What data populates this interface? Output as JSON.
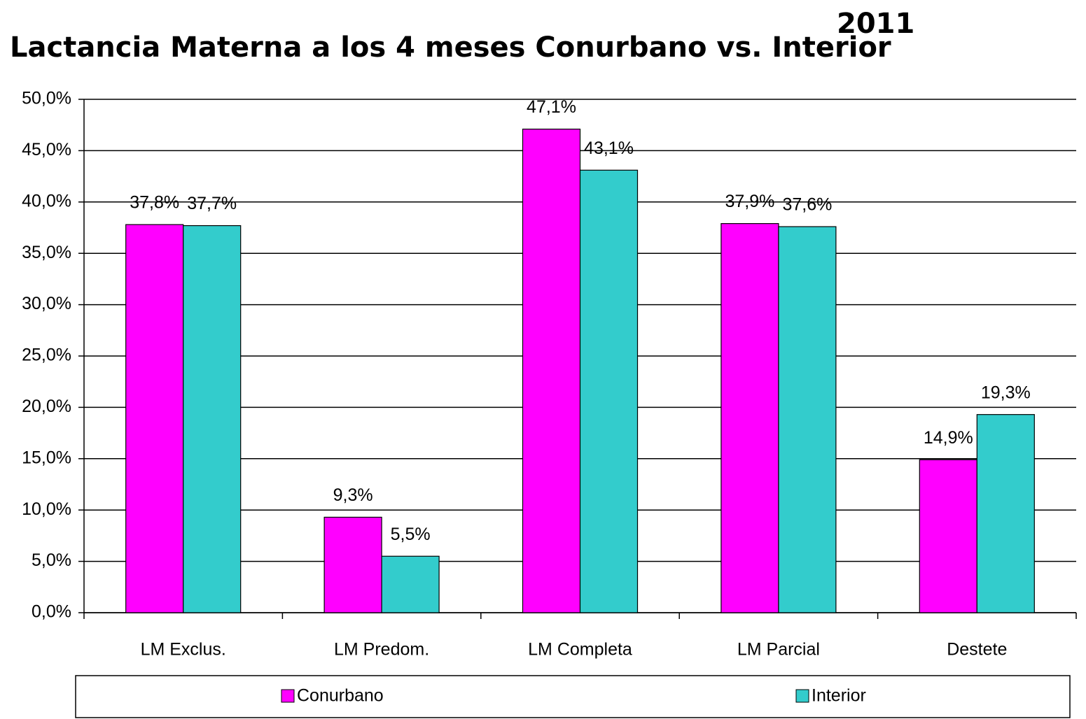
{
  "chart_data": {
    "type": "bar",
    "title": "Lactancia Materna a los 4 meses Conurbano vs. Interior",
    "subtitle": "2011",
    "categories": [
      "LM Exclus.",
      "LM Predom.",
      "LM Completa",
      "LM Parcial",
      "Destete"
    ],
    "series": [
      {
        "name": "Conurbano",
        "color": "#ff00ff",
        "values": [
          37.8,
          9.3,
          47.1,
          37.9,
          14.9
        ],
        "value_labels": [
          "37,8%",
          "9,3%",
          "47,1%",
          "37,9%",
          "14,9%"
        ]
      },
      {
        "name": "Interior",
        "color": "#33cccc",
        "values": [
          37.7,
          5.5,
          43.1,
          37.6,
          19.3
        ],
        "value_labels": [
          "37,7%",
          "5,5%",
          "43,1%",
          "37,6%",
          "19,3%"
        ]
      }
    ],
    "ylim": [
      0,
      50
    ],
    "yticks": [
      {
        "value": 0,
        "label": "0,0%"
      },
      {
        "value": 5,
        "label": "5,0%"
      },
      {
        "value": 10,
        "label": "10,0%"
      },
      {
        "value": 15,
        "label": "15,0%"
      },
      {
        "value": 20,
        "label": "20,0%"
      },
      {
        "value": 25,
        "label": "25,0%"
      },
      {
        "value": 30,
        "label": "30,0%"
      },
      {
        "value": 35,
        "label": "35,0%"
      },
      {
        "value": 40,
        "label": "40,0%"
      },
      {
        "value": 45,
        "label": "45,0%"
      },
      {
        "value": 50,
        "label": "50,0%"
      }
    ],
    "grid": true,
    "legend": "bottom"
  }
}
